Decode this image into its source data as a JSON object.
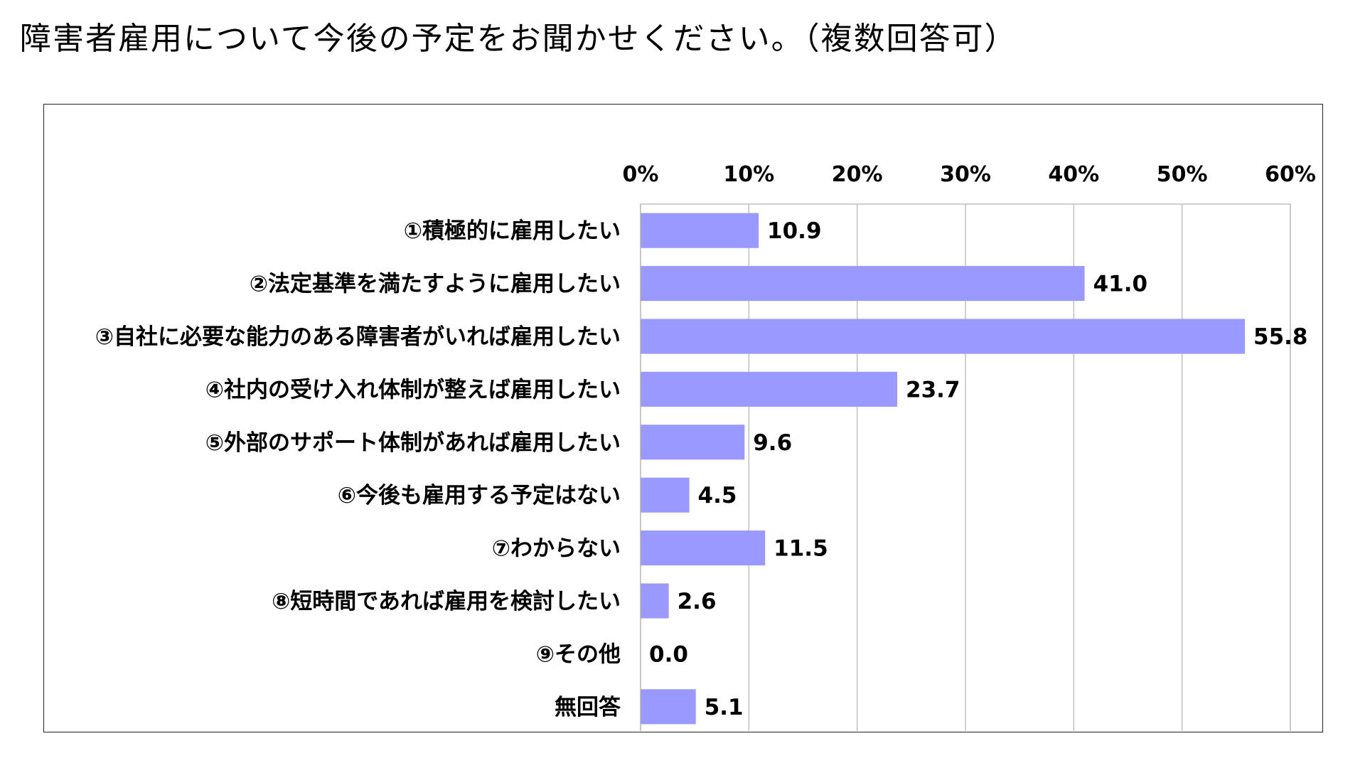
{
  "title": "障害者雇用について今後の予定をお聞かせください。（複数回答可）",
  "chart_data": {
    "type": "bar",
    "orientation": "horizontal",
    "title": "障害者雇用について今後の予定をお聞かせください。（複数回答可）",
    "xlabel": "",
    "ylabel": "",
    "xlim": [
      0,
      60
    ],
    "x_ticks": [
      "0%",
      "10%",
      "20%",
      "30%",
      "40%",
      "50%",
      "60%"
    ],
    "x_tick_values": [
      0,
      10,
      20,
      30,
      40,
      50,
      60
    ],
    "grid": true,
    "legend": "none",
    "categories": [
      "①積極的に雇用したい",
      "②法定基準を満たすように雇用したい",
      "③自社に必要な能力のある障害者がいれば雇用したい",
      "④社内の受け入れ体制が整えば雇用したい",
      "⑤外部のサポート体制があれば雇用したい",
      "⑥今後も雇用する予定はない",
      "⑦わからない",
      "⑧短時間であれば雇用を検討したい",
      "⑨その他",
      "無回答"
    ],
    "values": [
      10.9,
      41.0,
      55.8,
      23.7,
      9.6,
      4.5,
      11.5,
      2.6,
      0.0,
      5.1
    ],
    "value_labels": [
      "10.9",
      "41.0",
      "55.8",
      "23.7",
      "9.6",
      "4.5",
      "11.5",
      "2.6",
      "0.0",
      "5.1"
    ],
    "bar_color": "#9999ff",
    "grid_color": "#c0c0c0"
  }
}
